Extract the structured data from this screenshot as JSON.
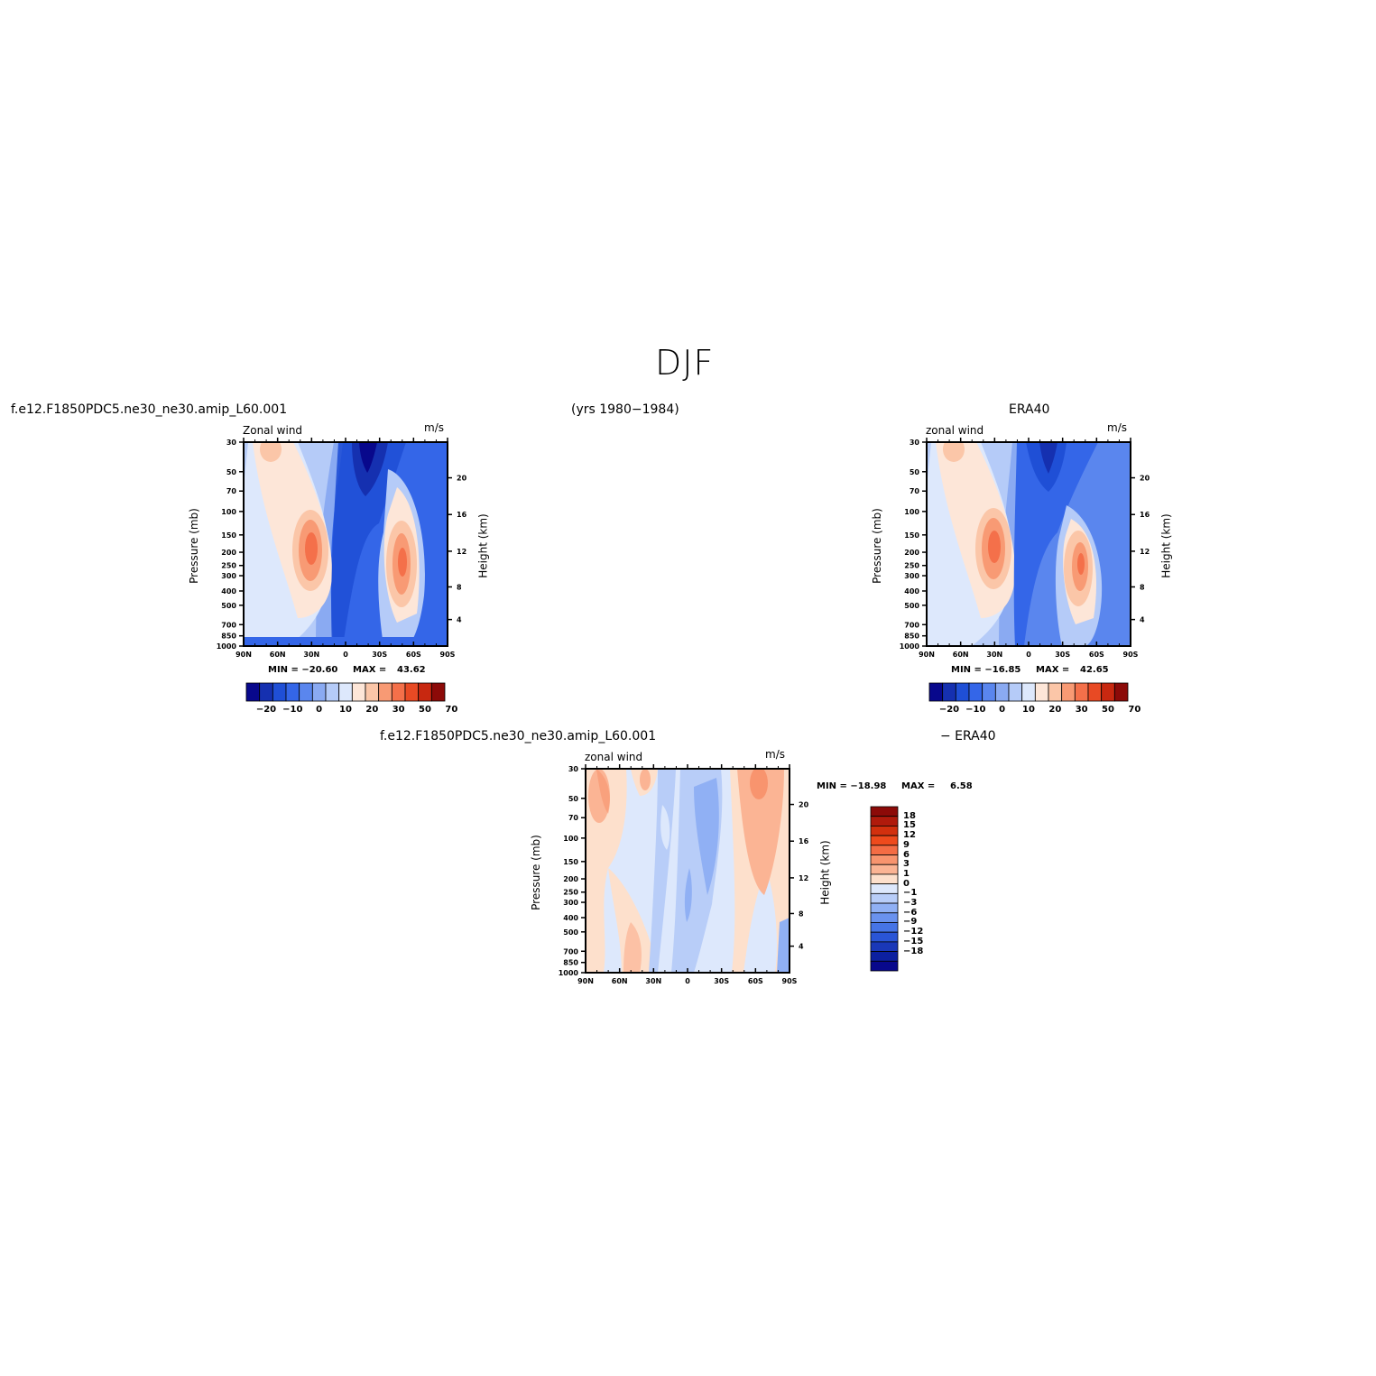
{
  "page": {
    "title": "DJF",
    "case_label_top": "f.e12.F1850PDC5.ne30_ne30.amip_L60.001",
    "years_label": "(yrs 1980−1984)",
    "obs_label_top": "ERA40",
    "diff_case_label": "f.e12.F1850PDC5.ne30_ne30.amip_L60.001",
    "diff_obs_label": "− ERA40"
  },
  "chart_data": [
    {
      "id": "model",
      "type": "heatmap",
      "field": "Zonal wind",
      "units": "m/s",
      "ylabel": "Pressure (mb)",
      "y2label": "Height (km)",
      "x_ticks": [
        "90N",
        "60N",
        "30N",
        "0",
        "30S",
        "60S",
        "90S"
      ],
      "y_ticks": [
        "30",
        "50",
        "70",
        "100",
        "150",
        "200",
        "250",
        "300",
        "400",
        "500",
        "700",
        "850",
        "1000"
      ],
      "y2_ticks": [
        "20",
        "16",
        "12",
        "8",
        "4"
      ],
      "min_label": "MIN = −20.60",
      "max_label": "MAX =",
      "max_value": "43.62",
      "min": -20.6,
      "max": 43.62,
      "colorbar_labels": [
        "−20",
        "−10",
        "0",
        "10",
        "20",
        "30",
        "50",
        "70"
      ]
    },
    {
      "id": "obs",
      "type": "heatmap",
      "field": "zonal wind",
      "units": "m/s",
      "ylabel": "Pressure (mb)",
      "y2label": "Height (km)",
      "x_ticks": [
        "90N",
        "60N",
        "30N",
        "0",
        "30S",
        "60S",
        "90S"
      ],
      "y_ticks": [
        "30",
        "50",
        "70",
        "100",
        "150",
        "200",
        "250",
        "300",
        "400",
        "500",
        "700",
        "850",
        "1000"
      ],
      "y2_ticks": [
        "20",
        "16",
        "12",
        "8",
        "4"
      ],
      "min_label": "MIN = −16.85",
      "max_label": "MAX =",
      "max_value": "42.65",
      "min": -16.85,
      "max": 42.65,
      "colorbar_labels": [
        "−20",
        "−10",
        "0",
        "10",
        "20",
        "30",
        "50",
        "70"
      ]
    },
    {
      "id": "diff",
      "type": "heatmap",
      "field": "zonal wind",
      "units": "m/s",
      "ylabel": "Pressure (mb)",
      "y2label": "Height (km)",
      "x_ticks": [
        "90N",
        "60N",
        "30N",
        "0",
        "30S",
        "60S",
        "90S"
      ],
      "y_ticks": [
        "30",
        "50",
        "70",
        "100",
        "150",
        "200",
        "250",
        "300",
        "400",
        "500",
        "700",
        "850",
        "1000"
      ],
      "y2_ticks": [
        "20",
        "16",
        "12",
        "8",
        "4"
      ],
      "min_label": "MIN = −18.98",
      "max_label": "MAX =",
      "max_value": "6.58",
      "min": -18.98,
      "max": 6.58,
      "colorbar_labels": [
        "18",
        "15",
        "12",
        "9",
        "6",
        "3",
        "1",
        "0",
        "−1",
        "−3",
        "−6",
        "−9",
        "−12",
        "−15",
        "−18"
      ]
    }
  ],
  "colors": {
    "scale": [
      "#08088c",
      "#1530b0",
      "#1f4fd6",
      "#3466e8",
      "#5a86ee",
      "#8aaaf2",
      "#b5cbf8",
      "#dde8fc",
      "#fde6d8",
      "#fbc6a8",
      "#f89a74",
      "#f4704a",
      "#e84a24",
      "#c82810",
      "#8c0a08"
    ],
    "diff_scale": [
      "#8c0a08",
      "#b01a0c",
      "#d2300e",
      "#ee4a1c",
      "#f46c44",
      "#f8946e",
      "#fbb494",
      "#fde0cc",
      "#dde8fc",
      "#b8cdf8",
      "#90b0f4",
      "#6a92ee",
      "#4674e6",
      "#2a55d6",
      "#1a38b8",
      "#0c20a0",
      "#08088c"
    ]
  }
}
